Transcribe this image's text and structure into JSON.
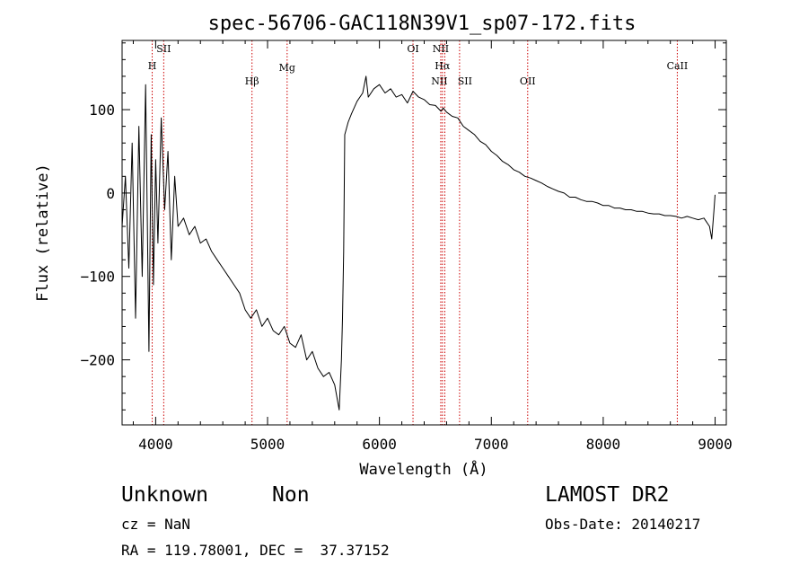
{
  "chart_data": {
    "type": "line",
    "title": "spec-56706-GAC118N39V1_sp07-172.fits",
    "xlabel": "Wavelength (Å)",
    "ylabel": "Flux (relative)",
    "xlim": [
      3700,
      9100
    ],
    "ylim": [
      -278,
      183
    ],
    "xticks": [
      4000,
      5000,
      6000,
      7000,
      8000,
      9000
    ],
    "yticks": [
      -200,
      -100,
      0,
      100
    ],
    "grid": false,
    "line_color": "#000000",
    "marker_color": "#cc0000",
    "series": [
      {
        "x": [
          3700,
          3730,
          3760,
          3790,
          3820,
          3850,
          3880,
          3910,
          3940,
          3960,
          3980,
          4000,
          4020,
          4050,
          4080,
          4110,
          4140,
          4170,
          4200,
          4250,
          4300,
          4350,
          4400,
          4450,
          4500,
          4550,
          4600,
          4650,
          4700,
          4750,
          4800,
          4850,
          4900,
          4950,
          5000,
          5050,
          5100,
          5150,
          5200,
          5250,
          5300,
          5350,
          5400,
          5450,
          5500,
          5550,
          5600,
          5640,
          5660,
          5670,
          5680,
          5690,
          5700,
          5720,
          5750,
          5800,
          5850,
          5880,
          5900,
          5950,
          6000,
          6050,
          6100,
          6150,
          6200,
          6250,
          6300,
          6350,
          6400,
          6450,
          6500,
          6550,
          6570,
          6600,
          6650,
          6700,
          6750,
          6800,
          6850,
          6900,
          6950,
          7000,
          7050,
          7100,
          7150,
          7200,
          7250,
          7300,
          7350,
          7400,
          7450,
          7500,
          7550,
          7600,
          7650,
          7700,
          7750,
          7800,
          7850,
          7900,
          7950,
          8000,
          8050,
          8100,
          8150,
          8200,
          8250,
          8300,
          8350,
          8400,
          8450,
          8500,
          8550,
          8600,
          8650,
          8700,
          8750,
          8800,
          8850,
          8900,
          8950,
          8970,
          8990,
          9000
        ],
        "values": [
          -40,
          20,
          -90,
          60,
          -150,
          80,
          -100,
          130,
          -190,
          70,
          -110,
          40,
          -60,
          90,
          -20,
          50,
          -80,
          20,
          -40,
          -30,
          -50,
          -40,
          -60,
          -55,
          -70,
          -80,
          -90,
          -100,
          -110,
          -120,
          -140,
          -150,
          -140,
          -160,
          -150,
          -165,
          -170,
          -160,
          -180,
          -185,
          -170,
          -200,
          -190,
          -210,
          -220,
          -215,
          -230,
          -260,
          -200,
          -150,
          -70,
          70,
          75,
          85,
          95,
          110,
          120,
          140,
          115,
          125,
          130,
          120,
          125,
          115,
          118,
          108,
          122,
          115,
          112,
          106,
          105,
          98,
          102,
          97,
          92,
          90,
          80,
          75,
          70,
          62,
          58,
          50,
          45,
          38,
          34,
          28,
          25,
          20,
          18,
          15,
          12,
          8,
          5,
          2,
          0,
          -5,
          -5,
          -8,
          -10,
          -10,
          -12,
          -15,
          -15,
          -18,
          -18,
          -20,
          -20,
          -22,
          -22,
          -24,
          -25,
          -25,
          -27,
          -27,
          -28,
          -30,
          -28,
          -30,
          -32,
          -30,
          -40,
          -55,
          -20,
          -2
        ]
      }
    ],
    "lines": [
      {
        "label": "H",
        "x": 3969
      },
      {
        "label": "SII",
        "x": 4072
      },
      {
        "label": "Hβ",
        "x": 4861
      },
      {
        "label": "Mg",
        "x": 5175
      },
      {
        "label": "OI",
        "x": 6300
      },
      {
        "label": "NII",
        "x": 6548
      },
      {
        "label": "Hα",
        "x": 6563
      },
      {
        "label": "NII",
        "x": 6584
      },
      {
        "label": "SII",
        "x": 6716
      },
      {
        "label": "OII",
        "x": 7325
      },
      {
        "label": "CaII",
        "x": 8662
      }
    ]
  },
  "info": {
    "class": "Unknown",
    "subclass": "Non",
    "survey": "LAMOST DR2",
    "cz": "cz = NaN",
    "obs_date": "Obs-Date: 20140217",
    "coords": "RA = 119.78001, DEC =  37.37152"
  }
}
